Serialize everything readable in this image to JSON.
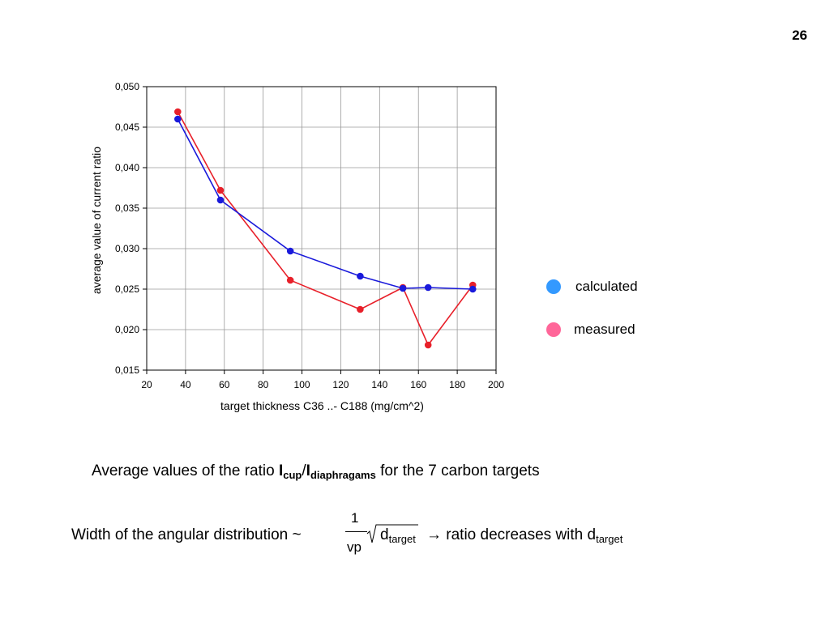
{
  "page_number": "26",
  "legend": {
    "items": [
      {
        "label": "calculated",
        "color": "#3399ff"
      },
      {
        "label": "measured",
        "color": "#ff6699"
      }
    ]
  },
  "caption": {
    "prefix": "Average values of the ratio ",
    "i1": "I",
    "sub1": "cup",
    "slash": "/",
    "i2": "I",
    "sub2": "diaphragams",
    "suffix": " for the 7 carbon targets"
  },
  "formula": {
    "prefix": "Width of the angular distribution ~",
    "numerator": "1",
    "denominator": "vp",
    "radicand": "d",
    "radicand_sub": "target",
    "arrow_text": " → ratio decreases with d",
    "arrow_sub": "target"
  },
  "chart_data": {
    "type": "line",
    "xlabel": "target thickness C36 ..- C188 (mg/cm^2)",
    "ylabel": "average value of current ratio",
    "xlim": [
      20,
      200
    ],
    "ylim": [
      0.015,
      0.05
    ],
    "xticks": [
      20,
      40,
      60,
      80,
      100,
      120,
      140,
      160,
      180,
      200
    ],
    "xtick_labels": [
      "20",
      "40",
      "60",
      "80",
      "100",
      "120",
      "140",
      "160",
      "180",
      "200"
    ],
    "yticks": [
      0.015,
      0.02,
      0.025,
      0.03,
      0.035,
      0.04,
      0.045,
      0.05
    ],
    "ytick_labels": [
      "0,015",
      "0,020",
      "0,025",
      "0,030",
      "0,035",
      "0,040",
      "0,045",
      "0,050"
    ],
    "grid": true,
    "series": [
      {
        "name": "measured",
        "color": "#e8202a",
        "x": [
          36,
          58,
          94,
          130,
          152,
          165,
          188
        ],
        "y": [
          0.0469,
          0.0372,
          0.0261,
          0.0225,
          0.0252,
          0.0181,
          0.0255
        ]
      },
      {
        "name": "calculated",
        "color": "#1a1adb",
        "x": [
          36,
          58,
          94,
          130,
          152,
          165,
          188
        ],
        "y": [
          0.046,
          0.036,
          0.0297,
          0.0266,
          0.0251,
          0.0252,
          0.025
        ]
      }
    ]
  }
}
